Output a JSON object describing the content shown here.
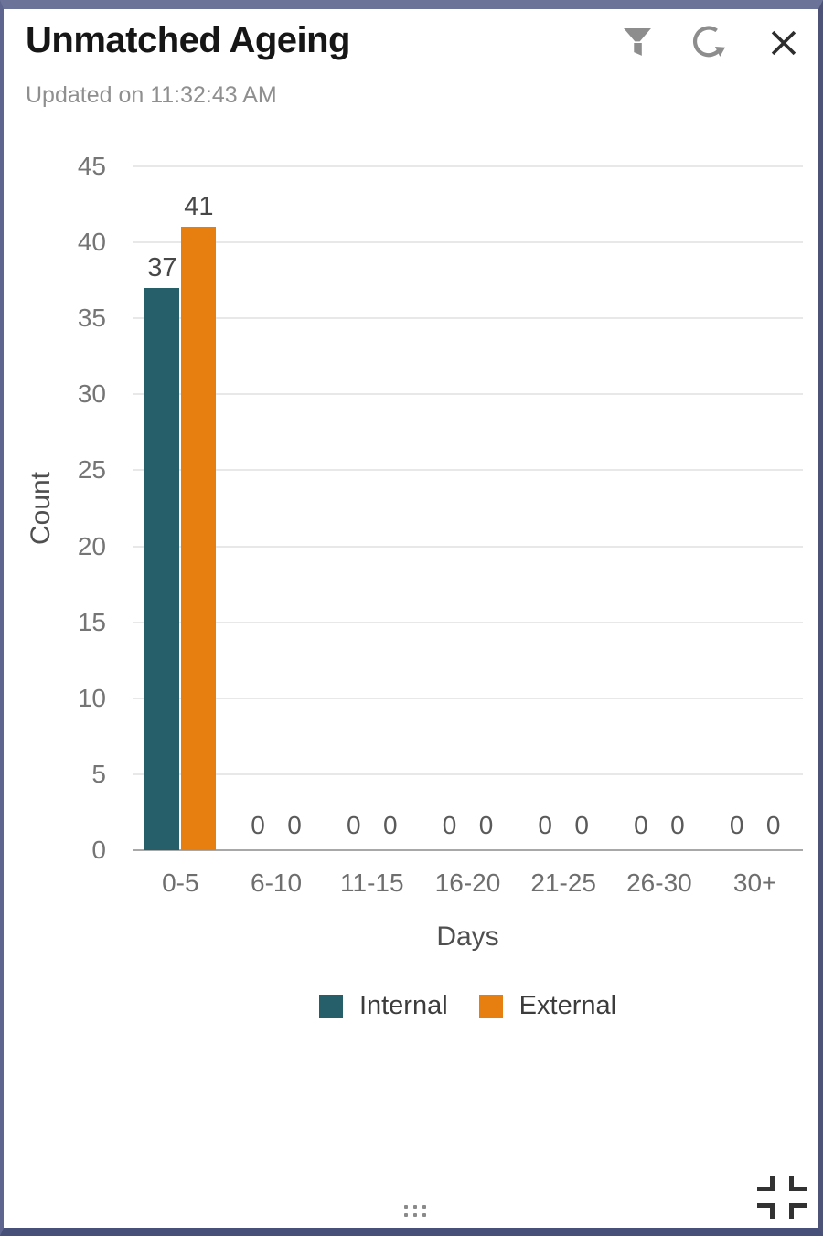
{
  "header": {
    "title": "Unmatched Ageing",
    "updated": "Updated on 11:32:43 AM",
    "icons": [
      "filter-icon",
      "refresh-icon",
      "close-icon"
    ]
  },
  "chart_data": {
    "type": "bar",
    "categories": [
      "0-5",
      "6-10",
      "11-15",
      "16-20",
      "21-25",
      "26-30",
      "30+"
    ],
    "series": [
      {
        "name": "Internal",
        "color": "#265E69",
        "values": [
          37,
          0,
          0,
          0,
          0,
          0,
          0
        ]
      },
      {
        "name": "External",
        "color": "#E67E10",
        "values": [
          41,
          0,
          0,
          0,
          0,
          0,
          0
        ]
      }
    ],
    "title": "",
    "xlabel": "Days",
    "ylabel": "Count",
    "ylim": [
      0,
      45
    ],
    "ytick_step": 5,
    "grid": true,
    "legend_position": "bottom"
  },
  "colors": {
    "internal": "#265E69",
    "external": "#E67E10",
    "gridline": "#e8e8e8",
    "axis_line": "#a8a8a8",
    "frame_top": "#6C7399",
    "frame_bottom": "#475078"
  }
}
